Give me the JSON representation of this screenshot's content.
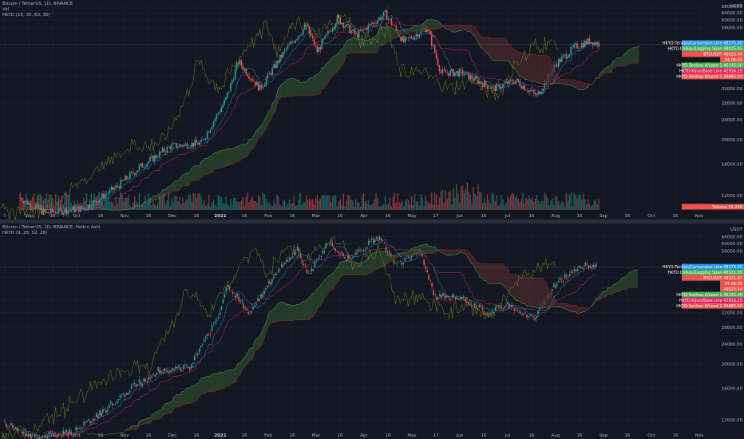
{
  "theme": {
    "background": "#131722",
    "grid": "#1e222d",
    "up": "#26a69a",
    "down": "#ef5350",
    "tenkan": "#2196f3",
    "kijun": "#e91e63",
    "chikou": "#7a8a1f",
    "cloud_up": "#2e4a2e",
    "cloud_down": "#4a2a2e"
  },
  "top_chart": {
    "legend": [
      "Bitcoin / TetherUS, 1D, BINANCE",
      "Vol",
      "HKYD (10, 30, 60, 30)"
    ],
    "currency": "USDT",
    "y_ticks": [
      "68000.00",
      "64000.00",
      "60000.00",
      "56000.00",
      "48000.00",
      "44000.00",
      "40000.00",
      "36000.00",
      "32000.00",
      "28000.00",
      "24000.00",
      "20000.00",
      "16000.00",
      "12000.00"
    ],
    "x_ticks": [
      "7",
      "Sep",
      "16",
      "Oct",
      "16",
      "Nov",
      "16",
      "Dec",
      "16",
      "2021",
      "16",
      "Feb",
      "16",
      "Mar",
      "16",
      "Apr",
      "16",
      "May",
      "17",
      "Jun",
      "16",
      "Jul",
      "16",
      "Aug",
      "16",
      "Sep",
      "16",
      "Oct",
      "16",
      "Nov"
    ],
    "labels": [
      {
        "text": "HKYD:Tenkan/Conversion Line",
        "value": "48575.00",
        "color": "#2196f3"
      },
      {
        "text": "HKYD:Chikou/Lagging Span",
        "value": "48025.45",
        "color": "#4caf50"
      },
      {
        "text": "BTCUSDT",
        "value": "48025.44",
        "color": "#ef5350"
      },
      {
        "text": "",
        "value": "04:06:35",
        "color": "#ef5350"
      },
      {
        "text": "HKYD:Senkou A/Lead 1",
        "value": "46145.00",
        "color": "#4caf50"
      },
      {
        "text": "HKYD:Kijun/Base Line",
        "value": "42916.25",
        "color": "#e91e63"
      },
      {
        "text": "HKYD:Senkou B/Lead 2",
        "value": "39885.00",
        "color": "#ef5350"
      },
      {
        "text": "Volume",
        "value": "54.24K",
        "color": "#ef5350"
      }
    ]
  },
  "bottom_chart": {
    "legend": [
      "Bitcoin / TetherUS, 1D, BINANCE, Heikin Ashi",
      "HKYD (9, 26, 52, 26)"
    ],
    "currency": "USDT",
    "y_ticks": [
      "64000.00",
      "60000.00",
      "56000.00",
      "44000.00",
      "40000.00",
      "36000.00",
      "32000.00",
      "28000.00",
      "24000.00",
      "20000.00",
      "16000.00",
      "12000.00"
    ],
    "x_ticks": [
      "17",
      "Sep",
      "16",
      "Oct",
      "16",
      "Nov",
      "16",
      "Dec",
      "16",
      "2021",
      "16",
      "Feb",
      "16",
      "Mar",
      "16",
      "Apr",
      "16",
      "May",
      "17",
      "Jun",
      "16",
      "Jul",
      "16",
      "Aug",
      "16",
      "Sep",
      "16",
      "Oct",
      "16",
      "Nov"
    ],
    "labels": [
      {
        "text": "HKYD:Tenkan/Conversion Line",
        "value": "48575.00",
        "color": "#2196f3"
      },
      {
        "text": "HKYD:Chikou/Lagging Span",
        "value": "48321.89",
        "color": "#4caf50"
      },
      {
        "text": "BTCUSDT",
        "value": "48321.87",
        "color": "#ef5350"
      },
      {
        "text": "",
        "value": "04:06:35",
        "color": "#ef5350"
      },
      {
        "text": "",
        "value": "48025.44",
        "color": "#ef5350"
      },
      {
        "text": "HKYD:Senkou A/Lead 1",
        "value": "46145.00",
        "color": "#4caf50"
      },
      {
        "text": "HKYD:Kijun/Base Line",
        "value": "42916.25",
        "color": "#e91e63"
      },
      {
        "text": "HKYD:Senkou B/Lead 2",
        "value": "39885.00",
        "color": "#ef5350"
      }
    ]
  },
  "chart_data": [
    {
      "type": "candlestick",
      "title": "Bitcoin / TetherUS, 1D, BINANCE",
      "indicator": "HKYD (10, 30, 60, 30)",
      "y_scale": "log",
      "ylim": [
        10500,
        70000
      ],
      "x_range": [
        "2020-08-07",
        "2021-11-04"
      ],
      "last_price": 48025.44,
      "close_anchors": [
        {
          "date": "2020-08-20",
          "price": 11700
        },
        {
          "date": "2020-09-05",
          "price": 10200
        },
        {
          "date": "2020-10-01",
          "price": 10700
        },
        {
          "date": "2020-10-21",
          "price": 12900
        },
        {
          "date": "2020-11-05",
          "price": 15500
        },
        {
          "date": "2020-11-25",
          "price": 18800
        },
        {
          "date": "2020-12-15",
          "price": 19400
        },
        {
          "date": "2020-12-31",
          "price": 29000
        },
        {
          "date": "2021-01-08",
          "price": 41000
        },
        {
          "date": "2021-01-22",
          "price": 32000
        },
        {
          "date": "2021-02-08",
          "price": 46000
        },
        {
          "date": "2021-02-21",
          "price": 57000
        },
        {
          "date": "2021-02-28",
          "price": 45000
        },
        {
          "date": "2021-03-13",
          "price": 61000
        },
        {
          "date": "2021-03-25",
          "price": 52000
        },
        {
          "date": "2021-04-13",
          "price": 63500
        },
        {
          "date": "2021-04-25",
          "price": 49000
        },
        {
          "date": "2021-05-10",
          "price": 56000
        },
        {
          "date": "2021-05-19",
          "price": 37000
        },
        {
          "date": "2021-06-01",
          "price": 37000
        },
        {
          "date": "2021-06-22",
          "price": 32000
        },
        {
          "date": "2021-07-06",
          "price": 34500
        },
        {
          "date": "2021-07-20",
          "price": 29800
        },
        {
          "date": "2021-08-01",
          "price": 40000
        },
        {
          "date": "2021-08-14",
          "price": 47000
        },
        {
          "date": "2021-08-23",
          "price": 49500
        },
        {
          "date": "2021-08-29",
          "price": 48025
        }
      ],
      "lines": {
        "tenkan": 48575.0,
        "chikou": 48025.45,
        "senkou_a": 46145.0,
        "kijun": 42916.25,
        "senkou_b": 39885.0
      },
      "volume_last": "54.24K"
    },
    {
      "type": "candlestick",
      "title": "Bitcoin / TetherUS, 1D, BINANCE, Heikin Ashi",
      "indicator": "HKYD (9, 26, 52, 26)",
      "y_scale": "log",
      "ylim": [
        11000,
        70000
      ],
      "x_range": [
        "2020-08-17",
        "2021-11-04"
      ],
      "last_price": 48321.87,
      "close_anchors": [
        {
          "date": "2020-08-20",
          "price": 11700
        },
        {
          "date": "2020-09-05",
          "price": 10200
        },
        {
          "date": "2020-10-01",
          "price": 10700
        },
        {
          "date": "2020-10-21",
          "price": 12900
        },
        {
          "date": "2020-11-05",
          "price": 15500
        },
        {
          "date": "2020-11-25",
          "price": 18800
        },
        {
          "date": "2020-12-15",
          "price": 19400
        },
        {
          "date": "2020-12-31",
          "price": 29000
        },
        {
          "date": "2021-01-08",
          "price": 41000
        },
        {
          "date": "2021-01-22",
          "price": 32000
        },
        {
          "date": "2021-02-08",
          "price": 46000
        },
        {
          "date": "2021-02-21",
          "price": 57000
        },
        {
          "date": "2021-02-28",
          "price": 45000
        },
        {
          "date": "2021-03-13",
          "price": 61000
        },
        {
          "date": "2021-03-25",
          "price": 52000
        },
        {
          "date": "2021-04-13",
          "price": 63500
        },
        {
          "date": "2021-04-25",
          "price": 49000
        },
        {
          "date": "2021-05-10",
          "price": 56000
        },
        {
          "date": "2021-05-19",
          "price": 37000
        },
        {
          "date": "2021-06-01",
          "price": 37000
        },
        {
          "date": "2021-06-22",
          "price": 32000
        },
        {
          "date": "2021-07-06",
          "price": 34500
        },
        {
          "date": "2021-07-20",
          "price": 29800
        },
        {
          "date": "2021-08-01",
          "price": 40000
        },
        {
          "date": "2021-08-14",
          "price": 47000
        },
        {
          "date": "2021-08-23",
          "price": 49500
        },
        {
          "date": "2021-08-29",
          "price": 48321
        }
      ],
      "lines": {
        "tenkan": 48575.0,
        "chikou": 48321.89,
        "senkou_a": 46145.0,
        "kijun": 42916.25,
        "senkou_b": 39885.0
      }
    }
  ]
}
